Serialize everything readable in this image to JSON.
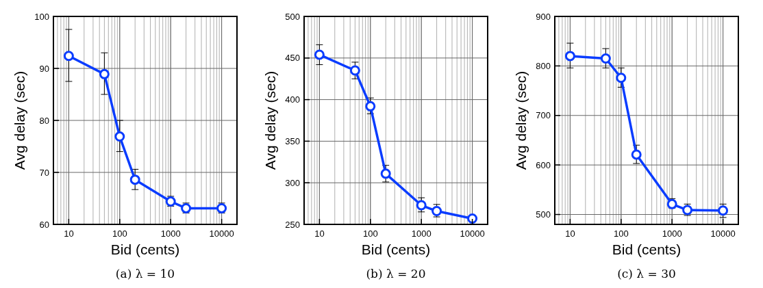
{
  "chart_data": [
    {
      "type": "line",
      "title": "(a) λ = 10",
      "xlabel": "Bid (cents)",
      "ylabel": "Avg delay (sec)",
      "x": [
        10,
        50,
        100,
        200,
        1000,
        2000,
        10000
      ],
      "log": "x",
      "grid": true,
      "marker": "circle",
      "line_style": "solid",
      "xlim": [
        5,
        20000
      ],
      "xticks": [
        10,
        100,
        1000,
        10000
      ],
      "ylim": [
        60,
        100
      ],
      "yticks": [
        60,
        70,
        80,
        90,
        100
      ],
      "series": [
        {
          "color": "#0a3cff",
          "values": [
            92.4,
            88.9,
            76.9,
            68.6,
            64.4,
            63.1,
            63.1
          ],
          "errors": [
            [
              87.5,
              97.5
            ],
            [
              85,
              93
            ],
            [
              74,
              80
            ],
            [
              66.7,
              70.6
            ],
            [
              63.5,
              65.4
            ],
            [
              62.2,
              64.1
            ],
            [
              62.2,
              64.1
            ]
          ]
        }
      ]
    },
    {
      "type": "line",
      "title": "(b) λ = 20",
      "xlabel": "Bid (cents)",
      "ylabel": "Avg delay (sec)",
      "x": [
        10,
        50,
        100,
        200,
        1000,
        2000,
        10000
      ],
      "log": "x",
      "grid": true,
      "marker": "circle",
      "line_style": "solid",
      "xlim": [
        5,
        20000
      ],
      "xticks": [
        10,
        100,
        1000,
        10000
      ],
      "ylim": [
        250,
        500
      ],
      "yticks": [
        250,
        300,
        350,
        400,
        450,
        500
      ],
      "series": [
        {
          "color": "#0a3cff",
          "values": [
            454,
            435,
            392,
            311,
            273,
            266,
            257
          ],
          "errors": [
            [
              442,
              466
            ],
            [
              425,
              445
            ],
            [
              383,
              402
            ],
            [
              301,
              321
            ],
            [
              265,
              282
            ],
            [
              259,
              274
            ],
            null
          ]
        }
      ]
    },
    {
      "type": "line",
      "title": "(c) λ = 30",
      "xlabel": "Bid (cents)",
      "ylabel": "Avg delay (sec)",
      "x": [
        10,
        50,
        100,
        200,
        1000,
        2000,
        10000
      ],
      "log": "x",
      "grid": true,
      "marker": "circle",
      "line_style": "solid",
      "xlim": [
        5,
        20000
      ],
      "xticks": [
        10,
        100,
        1000,
        10000
      ],
      "ylim": [
        480,
        900
      ],
      "yticks": [
        500,
        600,
        700,
        800,
        900
      ],
      "series": [
        {
          "color": "#0a3cff",
          "values": [
            820,
            815,
            776,
            621,
            521,
            509,
            508
          ],
          "errors": [
            [
              796,
              846
            ],
            [
              796,
              835
            ],
            [
              757,
              796
            ],
            [
              603,
              640
            ],
            [
              513,
              532
            ],
            [
              498,
              521
            ],
            [
              494,
              521
            ]
          ]
        }
      ]
    }
  ]
}
